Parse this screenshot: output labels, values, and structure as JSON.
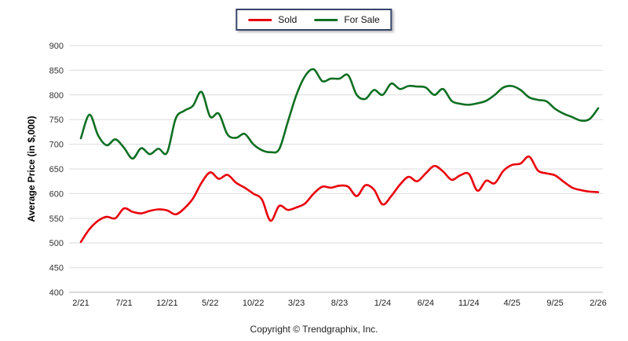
{
  "chart_data": {
    "type": "line",
    "title": "",
    "xlabel": "",
    "ylabel": "Average Price (in $,000)",
    "ylim": [
      400,
      900
    ],
    "ytick_step": 50,
    "grid": "horizontal",
    "legend_position": "top-center",
    "x_labels": [
      "2/21",
      "7/21",
      "12/21",
      "5/22",
      "10/22",
      "3/23",
      "8/23",
      "1/24",
      "6/24",
      "11/24",
      "4/25",
      "9/25",
      "2/26"
    ],
    "x_label_indices": [
      0,
      5,
      10,
      15,
      20,
      25,
      30,
      35,
      40,
      45,
      50,
      55,
      60
    ],
    "series": [
      {
        "name": "Sold",
        "color": "#e8000b",
        "values": [
          502,
          528,
          545,
          553,
          550,
          570,
          563,
          560,
          565,
          568,
          566,
          558,
          570,
          590,
          622,
          643,
          630,
          638,
          622,
          612,
          600,
          588,
          545,
          575,
          567,
          572,
          580,
          600,
          614,
          612,
          616,
          614,
          595,
          617,
          608,
          578,
          595,
          618,
          634,
          625,
          641,
          656,
          645,
          628,
          637,
          640,
          606,
          626,
          621,
          646,
          658,
          661,
          675,
          647,
          641,
          637,
          624,
          612,
          607,
          604,
          603
        ]
      },
      {
        "name": "For Sale",
        "color": "#0e6f22",
        "values": [
          712,
          760,
          718,
          698,
          710,
          693,
          671,
          692,
          680,
          691,
          683,
          752,
          768,
          778,
          806,
          756,
          762,
          720,
          713,
          721,
          700,
          688,
          684,
          690,
          745,
          800,
          838,
          852,
          828,
          833,
          833,
          840,
          800,
          792,
          810,
          800,
          823,
          812,
          818,
          817,
          815,
          800,
          812,
          788,
          782,
          780,
          783,
          788,
          800,
          815,
          818,
          810,
          795,
          790,
          787,
          772,
          762,
          755,
          748,
          751,
          773
        ]
      }
    ]
  },
  "footer": {
    "copyright": "Copyright © Trendgraphix, Inc."
  }
}
